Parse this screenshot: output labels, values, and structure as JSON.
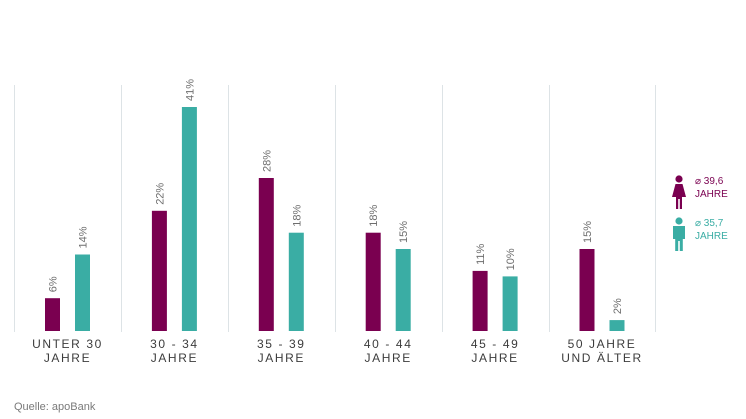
{
  "chart_data": {
    "type": "bar",
    "categories": [
      [
        "UNTER 30",
        "JAHRE"
      ],
      [
        "30 - 34",
        "JAHRE"
      ],
      [
        "35 - 39",
        "JAHRE"
      ],
      [
        "40 - 44",
        "JAHRE"
      ],
      [
        "45 - 49",
        "JAHRE"
      ],
      [
        "50 JAHRE",
        "UND ÄLTER"
      ]
    ],
    "series": [
      {
        "values": [
          6,
          22,
          28,
          18,
          11,
          15
        ],
        "labels": [
          "6%",
          "22%",
          "28%",
          "18%",
          "11%",
          "15%"
        ],
        "color": "#7a0050"
      },
      {
        "values": [
          14,
          41,
          18,
          15,
          10,
          2
        ],
        "labels": [
          "14%",
          "41%",
          "18%",
          "15%",
          "10%",
          "2%"
        ],
        "color": "#3aada4"
      }
    ],
    "ylim": [
      0,
      41
    ],
    "grid": false
  },
  "legend": [
    {
      "icon": "female-icon",
      "avg": "⌀ 39,6",
      "unit": "JAHRE",
      "color": "#7a0050"
    },
    {
      "icon": "male-icon",
      "avg": "⌀ 35,7",
      "unit": "JAHRE",
      "color": "#3aada4"
    }
  ],
  "source": "Quelle:  apoBank"
}
